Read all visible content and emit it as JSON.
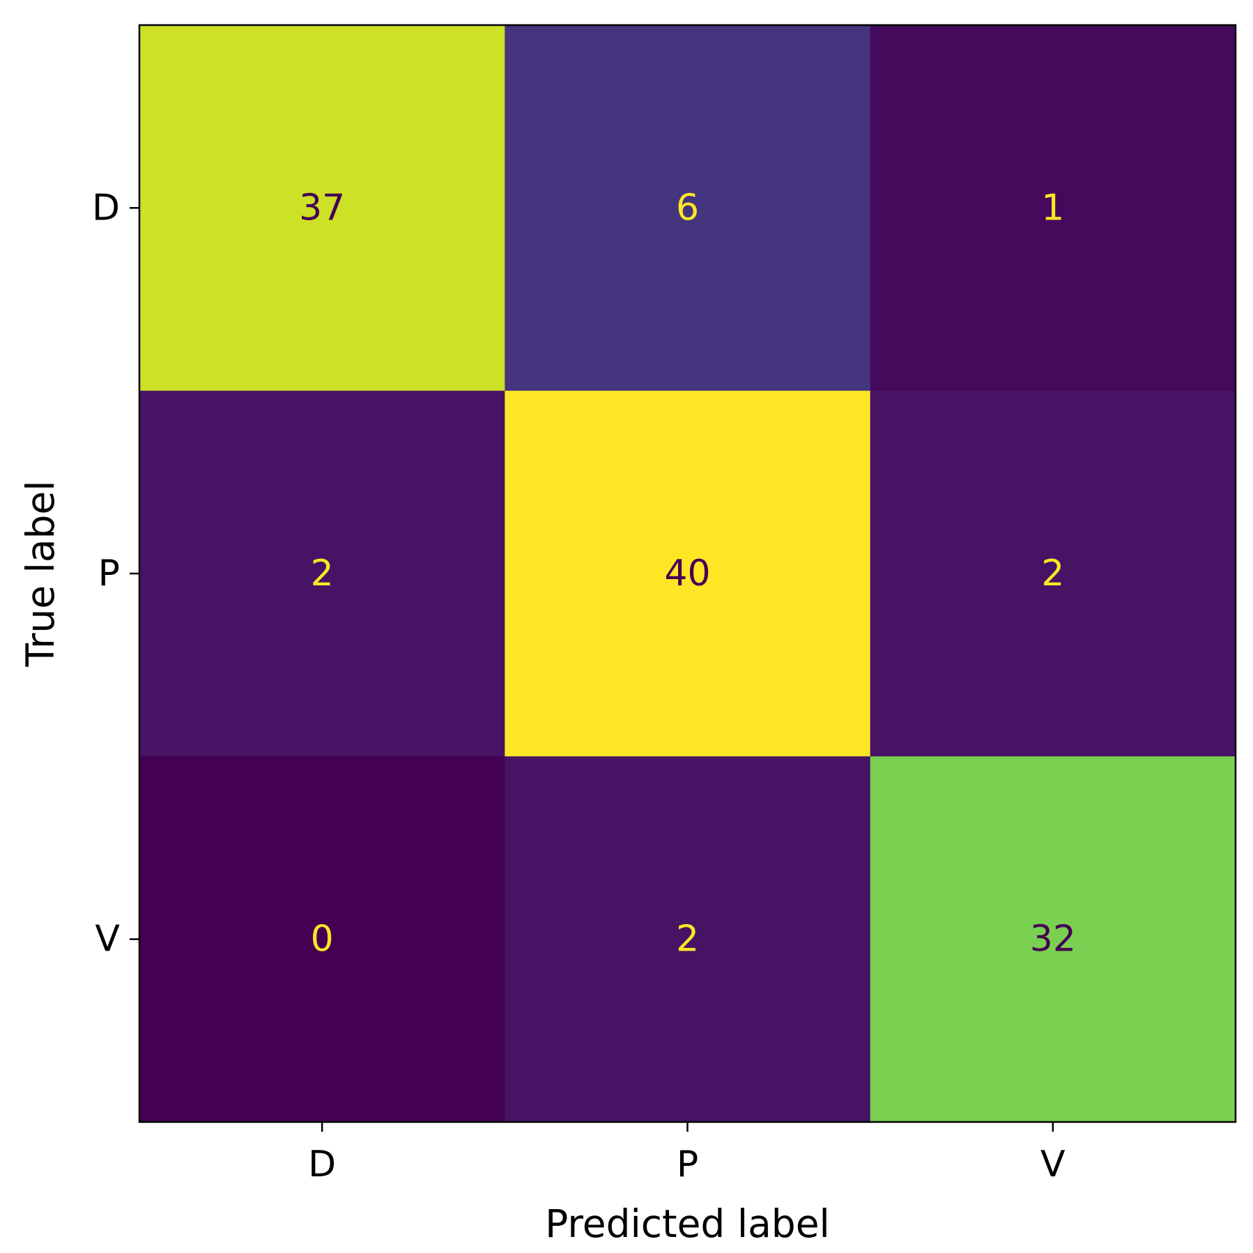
{
  "chart_data": {
    "type": "heatmap",
    "title": "",
    "xlabel": "Predicted label",
    "ylabel": "True label",
    "x_categories": [
      "D",
      "P",
      "V"
    ],
    "y_categories": [
      "D",
      "P",
      "V"
    ],
    "values": [
      [
        37,
        6,
        1
      ],
      [
        2,
        40,
        2
      ],
      [
        0,
        2,
        32
      ]
    ],
    "colormap": "viridis",
    "value_range": [
      0,
      40
    ],
    "grid": false,
    "legend": "none"
  }
}
